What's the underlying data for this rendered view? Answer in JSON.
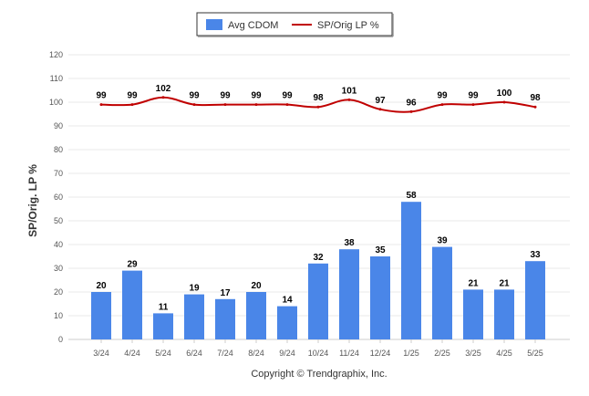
{
  "chart_data": {
    "type": "bar",
    "categories": [
      "3/24",
      "4/24",
      "5/24",
      "6/24",
      "7/24",
      "8/24",
      "9/24",
      "10/24",
      "11/24",
      "12/24",
      "1/25",
      "2/25",
      "3/25",
      "4/25",
      "5/25"
    ],
    "series": [
      {
        "name": "Avg CDOM",
        "type": "bar",
        "color": "#4a86e8",
        "values": [
          20,
          29,
          11,
          19,
          17,
          20,
          14,
          32,
          38,
          35,
          58,
          39,
          21,
          21,
          33
        ]
      },
      {
        "name": "SP/Orig LP %",
        "type": "line",
        "color": "#c00000",
        "values": [
          99,
          99,
          102,
          99,
          99,
          99,
          99,
          98,
          101,
          97,
          96,
          99,
          99,
          100,
          98
        ]
      }
    ],
    "ylabel": "SP/Orig. LP %",
    "ylim": [
      0,
      120
    ],
    "yticks": [
      0,
      10,
      20,
      30,
      40,
      50,
      60,
      70,
      80,
      90,
      100,
      110,
      120
    ],
    "grid": true,
    "legend_position": "top-center"
  },
  "footer": {
    "copyright": "Copyright © Trendgraphix, Inc."
  }
}
